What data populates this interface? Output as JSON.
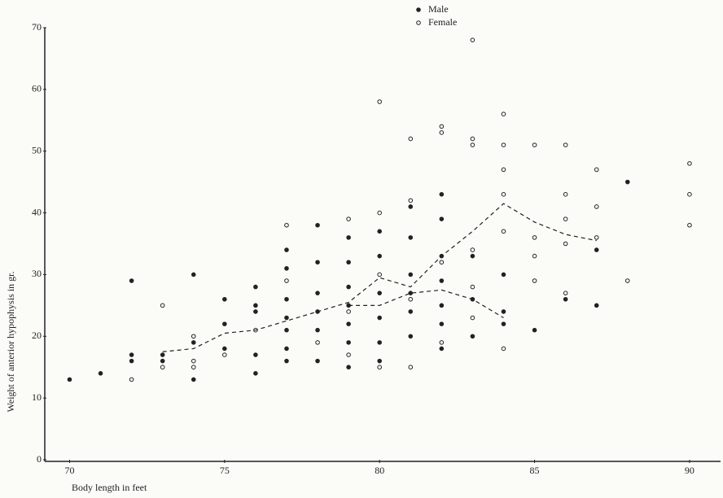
{
  "chart_data": {
    "type": "scatter",
    "x_label": "Body length in feet",
    "y_label": "Weight of anterior hypophysis in gr.",
    "xlim": [
      69.2,
      91
    ],
    "ylim": [
      0,
      70
    ],
    "xticks": [
      70,
      75,
      80,
      85,
      90
    ],
    "yticks": [
      0,
      10,
      20,
      30,
      40,
      50,
      60,
      70
    ],
    "grid": false,
    "legend": "top",
    "series": [
      {
        "name": "Male",
        "color": "#222222",
        "marker": "filled",
        "x": [
          70,
          71,
          72,
          72,
          72,
          73,
          73,
          74,
          74,
          74,
          75,
          75,
          75,
          76,
          76,
          76,
          76,
          76,
          77,
          77,
          77,
          77,
          77,
          77,
          77,
          78,
          78,
          78,
          78,
          78,
          78,
          79,
          79,
          79,
          79,
          79,
          79,
          79,
          80,
          80,
          80,
          80,
          80,
          80,
          81,
          81,
          81,
          81,
          81,
          81,
          82,
          82,
          82,
          82,
          82,
          82,
          82,
          83,
          83,
          83,
          84,
          84,
          84,
          85,
          86,
          87,
          87,
          88
        ],
        "values": [
          13,
          14,
          29,
          16,
          17,
          17,
          16,
          30,
          13,
          19,
          26,
          22,
          18,
          28,
          25,
          24,
          17,
          14,
          34,
          31,
          26,
          23,
          21,
          18,
          16,
          38,
          32,
          27,
          24,
          21,
          16,
          36,
          32,
          28,
          25,
          22,
          19,
          15,
          37,
          33,
          27,
          23,
          19,
          16,
          41,
          36,
          30,
          27,
          24,
          20,
          43,
          39,
          33,
          29,
          25,
          22,
          18,
          33,
          26,
          20,
          30,
          24,
          22,
          21,
          26,
          34,
          25,
          45
        ]
      },
      {
        "name": "Female",
        "color": "#222222",
        "marker": "open",
        "x": [
          72,
          73,
          73,
          74,
          74,
          74,
          75,
          76,
          77,
          77,
          78,
          79,
          79,
          79,
          80,
          80,
          80,
          80,
          81,
          81,
          81,
          81,
          82,
          82,
          82,
          82,
          83,
          83,
          83,
          83,
          83,
          83,
          84,
          84,
          84,
          84,
          84,
          84,
          85,
          85,
          85,
          85,
          86,
          86,
          86,
          86,
          86,
          87,
          87,
          87,
          88,
          90,
          90,
          90
        ],
        "values": [
          13,
          25,
          15,
          20,
          16,
          15,
          17,
          21,
          38,
          29,
          19,
          39,
          24,
          17,
          58,
          40,
          30,
          15,
          52,
          42,
          26,
          15,
          54,
          53,
          32,
          19,
          68,
          52,
          51,
          34,
          28,
          23,
          56,
          51,
          47,
          43,
          37,
          18,
          51,
          36,
          33,
          29,
          51,
          43,
          39,
          35,
          27,
          47,
          41,
          36,
          29,
          48,
          43,
          38
        ]
      }
    ],
    "lines": [
      {
        "color": "#222222",
        "x": [
          73,
          74,
          75,
          76,
          77,
          78,
          79,
          80,
          81,
          82,
          83,
          84,
          85,
          86,
          87
        ],
        "values": [
          17.5,
          18,
          20.5,
          21,
          22.5,
          24,
          25.5,
          29.5,
          28,
          33,
          37,
          41.5,
          38.5,
          36.5,
          35.5
        ]
      },
      {
        "color": "#222222",
        "x": [
          79,
          80,
          81,
          82,
          83,
          84
        ],
        "values": [
          25,
          25,
          27,
          27.5,
          26,
          23
        ]
      }
    ]
  }
}
